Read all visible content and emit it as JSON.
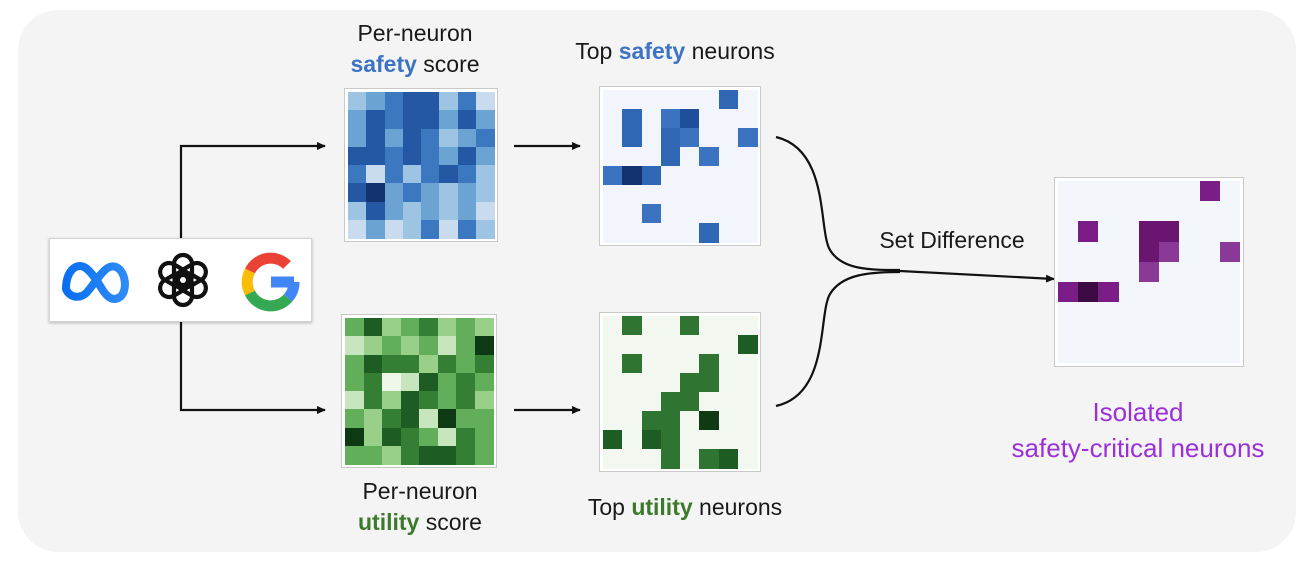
{
  "labels": {
    "safety_score_line1": "Per-neuron",
    "safety_score_word": "safety",
    "safety_score_rest": " score",
    "top_safety_prefix": "Top ",
    "top_safety_word": "safety",
    "top_safety_suffix": " neurons",
    "utility_score_line1": "Per-neuron",
    "utility_score_word": "utility",
    "utility_score_rest": " score",
    "top_utility_prefix": "Top ",
    "top_utility_word": "utility",
    "top_utility_suffix": " neurons",
    "set_difference": "Set Difference",
    "isolated_line1": "Isolated",
    "isolated_line2": "safety-critical neurons"
  },
  "colors": {
    "safety_accent": "#3d73c4",
    "utility_accent": "#3c7a2b",
    "isolated_accent": "#9b30d9",
    "arrow": "#111111"
  },
  "logos": [
    "meta-logo-icon",
    "openai-logo-icon",
    "google-logo-icon"
  ],
  "grids": {
    "safety_score": {
      "palette": [
        "#f0f5fc",
        "#c8dbef",
        "#9ec4e3",
        "#6ba3d3",
        "#3b78bf",
        "#2458a4",
        "#12336e"
      ],
      "cells": [
        [
          2,
          3,
          4,
          5,
          5,
          2,
          4,
          1
        ],
        [
          3,
          5,
          4,
          5,
          5,
          3,
          5,
          3
        ],
        [
          3,
          5,
          3,
          5,
          4,
          2,
          3,
          4
        ],
        [
          5,
          5,
          4,
          5,
          4,
          3,
          5,
          3
        ],
        [
          4,
          1,
          4,
          2,
          4,
          5,
          4,
          2
        ],
        [
          5,
          6,
          3,
          4,
          3,
          2,
          3,
          2
        ],
        [
          2,
          5,
          3,
          2,
          3,
          2,
          3,
          1
        ],
        [
          1,
          3,
          1,
          2,
          4,
          1,
          4,
          2
        ]
      ]
    },
    "top_safety": {
      "palette": [
        "#f2f6fc",
        "#2f67b5",
        "#3c73c1",
        "#1f4f9a",
        "#12336e"
      ],
      "cells": [
        [
          0,
          0,
          0,
          0,
          0,
          0,
          1,
          0
        ],
        [
          0,
          1,
          0,
          2,
          3,
          0,
          0,
          0
        ],
        [
          0,
          1,
          0,
          1,
          2,
          0,
          0,
          2
        ],
        [
          0,
          0,
          0,
          1,
          0,
          2,
          0,
          0
        ],
        [
          2,
          4,
          1,
          0,
          0,
          0,
          0,
          0
        ],
        [
          0,
          0,
          0,
          0,
          0,
          0,
          0,
          0
        ],
        [
          0,
          0,
          2,
          0,
          0,
          0,
          0,
          0
        ],
        [
          0,
          0,
          0,
          0,
          0,
          1,
          0,
          0
        ]
      ]
    },
    "utility_score": {
      "palette": [
        "#eef7ea",
        "#c8e6bd",
        "#98d08a",
        "#62ae5b",
        "#357f35",
        "#1d5c22",
        "#0d3a12"
      ],
      "cells": [
        [
          3,
          5,
          2,
          3,
          4,
          2,
          3,
          2
        ],
        [
          1,
          2,
          3,
          2,
          3,
          1,
          3,
          6
        ],
        [
          3,
          5,
          4,
          4,
          2,
          4,
          3,
          4
        ],
        [
          3,
          4,
          0,
          1,
          5,
          3,
          4,
          3
        ],
        [
          1,
          4,
          2,
          5,
          4,
          3,
          4,
          2
        ],
        [
          3,
          2,
          4,
          5,
          1,
          6,
          3,
          3
        ],
        [
          6,
          2,
          5,
          4,
          3,
          1,
          4,
          3
        ],
        [
          3,
          3,
          2,
          4,
          5,
          5,
          4,
          3
        ]
      ]
    },
    "top_utility": {
      "palette": [
        "#f2f8ef",
        "#2f7430",
        "#1d5c22",
        "#103a14"
      ],
      "cells": [
        [
          0,
          1,
          0,
          0,
          1,
          0,
          0,
          0
        ],
        [
          0,
          0,
          0,
          0,
          0,
          0,
          0,
          2
        ],
        [
          0,
          1,
          0,
          0,
          0,
          1,
          0,
          0
        ],
        [
          0,
          0,
          0,
          0,
          1,
          1,
          0,
          0
        ],
        [
          0,
          0,
          0,
          1,
          1,
          0,
          0,
          0
        ],
        [
          0,
          0,
          1,
          1,
          0,
          3,
          0,
          0
        ],
        [
          2,
          0,
          2,
          1,
          0,
          0,
          0,
          0
        ],
        [
          0,
          0,
          0,
          1,
          0,
          1,
          2,
          0
        ]
      ]
    },
    "isolated": {
      "palette": [
        "#f3f6fa",
        "#7b1d86",
        "#8a3a96",
        "#6a1670",
        "#3e0a44"
      ],
      "cells": [
        [
          0,
          0,
          0,
          0,
          0,
          0,
          0,
          1,
          0
        ],
        [
          0,
          0,
          0,
          0,
          0,
          0,
          0,
          0,
          0
        ],
        [
          0,
          1,
          0,
          0,
          3,
          3,
          0,
          0,
          0
        ],
        [
          0,
          0,
          0,
          0,
          3,
          2,
          0,
          0,
          2
        ],
        [
          0,
          0,
          0,
          0,
          2,
          0,
          0,
          0,
          0
        ],
        [
          1,
          4,
          1,
          0,
          0,
          0,
          0,
          0,
          0
        ],
        [
          0,
          0,
          0,
          0,
          0,
          0,
          0,
          0,
          0
        ],
        [
          0,
          0,
          0,
          0,
          0,
          0,
          0,
          0,
          0
        ],
        [
          0,
          0,
          0,
          0,
          0,
          0,
          0,
          0,
          0
        ]
      ]
    }
  }
}
